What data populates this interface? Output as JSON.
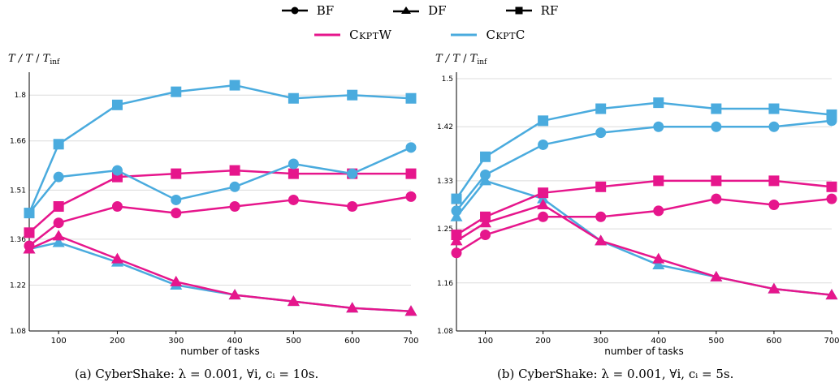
{
  "legend": {
    "markers": [
      {
        "label": "BF",
        "marker": "circle"
      },
      {
        "label": "DF",
        "marker": "triangle"
      },
      {
        "label": "RF",
        "marker": "square"
      }
    ],
    "lines": [
      {
        "label": "CkptW",
        "color": "#e6168c"
      },
      {
        "label": "CkptC",
        "color": "#4aabde"
      }
    ]
  },
  "captions": {
    "a": "(a) CyberShake: λ = 0.001, ∀i,  cᵢ = 10s.",
    "b": "(b) CyberShake: λ = 0.001, ∀i,  cᵢ = 5s."
  },
  "colors": {
    "ckptw": "#e6168c",
    "ckptc": "#4aabde",
    "grid": "#dcdcdc"
  },
  "chart_data": [
    {
      "type": "line",
      "xlabel": "number of tasks",
      "ylabel": "T / T_inf",
      "xlim": [
        50,
        700
      ],
      "ylim": [
        1.08,
        1.85
      ],
      "xticks": [
        100,
        200,
        300,
        400,
        500,
        600,
        700
      ],
      "yticks": [
        1.08,
        1.22,
        1.36,
        1.51,
        1.66,
        1.8
      ],
      "ytick_labels": [
        "1.08",
        "1.22",
        "1.36",
        "1.51",
        "1.66",
        "1.8"
      ],
      "x": [
        50,
        100,
        200,
        300,
        400,
        500,
        600,
        700
      ],
      "series": [
        {
          "name": "RF CkptC",
          "strategy": "RF",
          "scheme": "CkptC",
          "marker": "square",
          "values": [
            1.44,
            1.65,
            1.77,
            1.81,
            1.83,
            1.79,
            1.8,
            1.79
          ]
        },
        {
          "name": "BF CkptC",
          "strategy": "BF",
          "scheme": "CkptC",
          "marker": "circle",
          "values": [
            1.44,
            1.55,
            1.57,
            1.48,
            1.52,
            1.59,
            1.56,
            1.64
          ]
        },
        {
          "name": "RF CkptW",
          "strategy": "RF",
          "scheme": "CkptW",
          "marker": "square",
          "values": [
            1.38,
            1.46,
            1.55,
            1.56,
            1.57,
            1.56,
            1.56,
            1.56
          ]
        },
        {
          "name": "BF CkptW",
          "strategy": "BF",
          "scheme": "CkptW",
          "marker": "circle",
          "values": [
            1.34,
            1.41,
            1.46,
            1.44,
            1.46,
            1.48,
            1.46,
            1.49
          ]
        },
        {
          "name": "DF CkptW",
          "strategy": "DF",
          "scheme": "CkptW",
          "marker": "triangle",
          "values": [
            1.33,
            1.37,
            1.3,
            1.23,
            1.19,
            1.17,
            1.15,
            1.14
          ]
        },
        {
          "name": "DF CkptC",
          "strategy": "DF",
          "scheme": "CkptC",
          "marker": "triangle",
          "values": [
            1.33,
            1.35,
            1.29,
            1.22,
            1.19,
            1.17,
            1.15,
            1.14
          ]
        }
      ]
    },
    {
      "type": "line",
      "xlabel": "number of tasks",
      "ylabel": "T / T_inf",
      "xlim": [
        50,
        700
      ],
      "ylim": [
        1.08,
        1.5
      ],
      "xticks": [
        100,
        200,
        300,
        400,
        500,
        600,
        700
      ],
      "yticks": [
        1.08,
        1.16,
        1.25,
        1.33,
        1.42,
        1.5
      ],
      "ytick_labels": [
        "1.08",
        "1.16",
        "1.25",
        "1.33",
        "1.42",
        "1.5"
      ],
      "x": [
        50,
        100,
        200,
        300,
        400,
        500,
        600,
        700
      ],
      "series": [
        {
          "name": "RF CkptC",
          "strategy": "RF",
          "scheme": "CkptC",
          "marker": "square",
          "values": [
            1.3,
            1.37,
            1.43,
            1.45,
            1.46,
            1.45,
            1.45,
            1.44
          ]
        },
        {
          "name": "BF CkptC",
          "strategy": "BF",
          "scheme": "CkptC",
          "marker": "circle",
          "values": [
            1.28,
            1.34,
            1.39,
            1.41,
            1.42,
            1.42,
            1.42,
            1.43
          ]
        },
        {
          "name": "RF CkptW",
          "strategy": "RF",
          "scheme": "CkptW",
          "marker": "square",
          "values": [
            1.24,
            1.27,
            1.31,
            1.32,
            1.33,
            1.33,
            1.33,
            1.32
          ]
        },
        {
          "name": "BF CkptW",
          "strategy": "BF",
          "scheme": "CkptW",
          "marker": "circle",
          "values": [
            1.21,
            1.24,
            1.27,
            1.27,
            1.28,
            1.3,
            1.29,
            1.3
          ]
        },
        {
          "name": "DF CkptW",
          "strategy": "DF",
          "scheme": "CkptW",
          "marker": "triangle",
          "values": [
            1.23,
            1.26,
            1.29,
            1.23,
            1.2,
            1.17,
            1.15,
            1.14
          ]
        },
        {
          "name": "DF CkptC",
          "strategy": "DF",
          "scheme": "CkptC",
          "marker": "triangle",
          "values": [
            1.27,
            1.33,
            1.3,
            1.23,
            1.19,
            1.17,
            1.15,
            1.14
          ]
        }
      ]
    }
  ]
}
